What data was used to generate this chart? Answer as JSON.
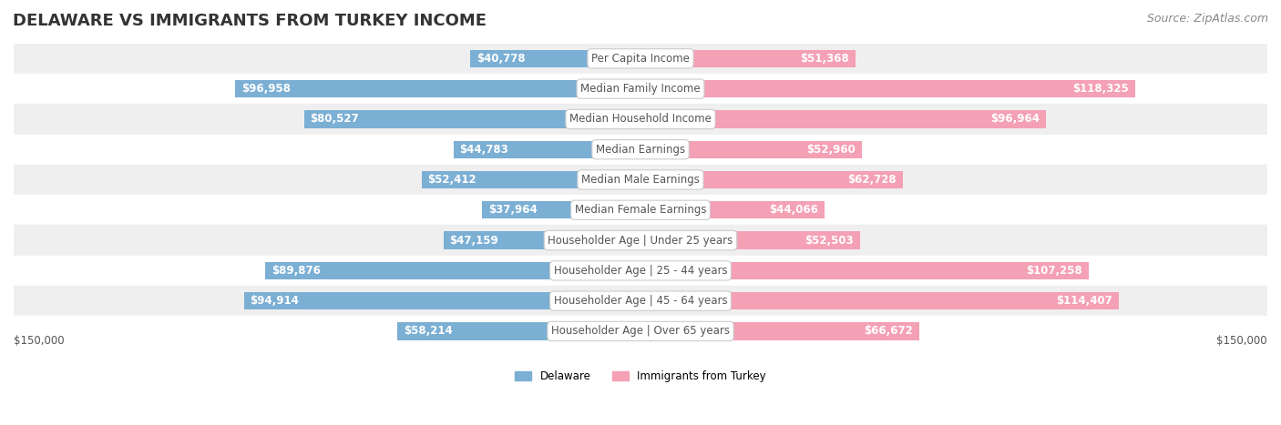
{
  "title": "DELAWARE VS IMMIGRANTS FROM TURKEY INCOME",
  "source": "Source: ZipAtlas.com",
  "categories": [
    "Per Capita Income",
    "Median Family Income",
    "Median Household Income",
    "Median Earnings",
    "Median Male Earnings",
    "Median Female Earnings",
    "Householder Age | Under 25 years",
    "Householder Age | 25 - 44 years",
    "Householder Age | 45 - 64 years",
    "Householder Age | Over 65 years"
  ],
  "delaware_values": [
    40778,
    96958,
    80527,
    44783,
    52412,
    37964,
    47159,
    89876,
    94914,
    58214
  ],
  "turkey_values": [
    51368,
    118325,
    96964,
    52960,
    62728,
    44066,
    52503,
    107258,
    114407,
    66672
  ],
  "delaware_labels": [
    "$40,778",
    "$96,958",
    "$80,527",
    "$44,783",
    "$52,412",
    "$37,964",
    "$47,159",
    "$89,876",
    "$94,914",
    "$58,214"
  ],
  "turkey_labels": [
    "$51,368",
    "$118,325",
    "$96,964",
    "$52,960",
    "$62,728",
    "$44,066",
    "$52,503",
    "$107,258",
    "$114,407",
    "$66,672"
  ],
  "delaware_color": "#7bafd4",
  "turkey_color": "#f4a0b5",
  "label_inside_color": "#ffffff",
  "label_outside_color": "#555555",
  "max_value": 150000,
  "bar_height": 0.58,
  "background_color": "#ffffff",
  "row_bg_colors": [
    "#efefef",
    "#ffffff"
  ],
  "legend_delaware": "Delaware",
  "legend_turkey": "Immigrants from Turkey",
  "xlabel_left": "$150,000",
  "xlabel_right": "$150,000",
  "category_box_color": "#ffffff",
  "category_text_color": "#555555",
  "title_fontsize": 13,
  "source_fontsize": 9,
  "label_fontsize": 8.5,
  "category_fontsize": 8.5,
  "inside_threshold": 30000
}
